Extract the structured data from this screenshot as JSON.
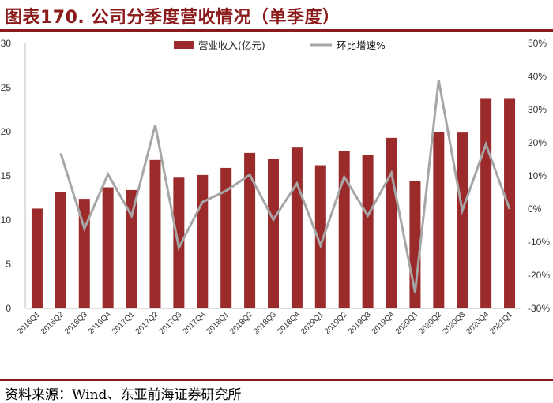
{
  "title": "图表170. 公司分季度营收情况（单季度）",
  "source": "资料来源：Wind、东亚前海证券研究所",
  "colors": {
    "bar": "#9b2b2b",
    "line": "#a6a6a6",
    "accent": "#8b1a1a"
  },
  "chart_data": {
    "type": "bar",
    "categories": [
      "2016Q1",
      "2016Q2",
      "2016Q3",
      "2016Q4",
      "2017Q1",
      "2017Q2",
      "2017Q3",
      "2017Q4",
      "2018Q1",
      "2018Q2",
      "2018Q3",
      "2018Q4",
      "2019Q1",
      "2019Q2",
      "2019Q3",
      "2019Q4",
      "2020Q1",
      "2020Q2",
      "2020Q3",
      "2020Q4",
      "2021Q1"
    ],
    "series": [
      {
        "name": "营业收入(亿元)",
        "type": "bar",
        "axis": "left",
        "values": [
          11.3,
          13.2,
          12.4,
          13.7,
          13.4,
          16.8,
          14.8,
          15.1,
          15.9,
          17.6,
          16.9,
          18.2,
          16.2,
          17.8,
          17.4,
          19.3,
          14.4,
          20.0,
          19.9,
          23.8,
          23.8
        ]
      },
      {
        "name": "环比增速%",
        "type": "line",
        "axis": "right",
        "values": [
          null,
          16.8,
          -5.9,
          10.5,
          -2.1,
          25.3,
          -11.7,
          2.1,
          5.5,
          10.3,
          -3.2,
          7.7,
          -11.0,
          9.7,
          -2.0,
          10.9,
          -25.2,
          38.9,
          -0.5,
          19.5,
          0.0
        ]
      }
    ],
    "yleft": {
      "min": 0,
      "max": 30,
      "ticks": [
        0,
        5,
        10,
        15,
        20,
        25,
        30
      ]
    },
    "yright": {
      "min": -30,
      "max": 50,
      "ticks": [
        "-30%",
        "-20%",
        "-10%",
        "0%",
        "10%",
        "20%",
        "30%",
        "40%",
        "50%"
      ]
    },
    "legend_position": "top",
    "grid": false
  }
}
